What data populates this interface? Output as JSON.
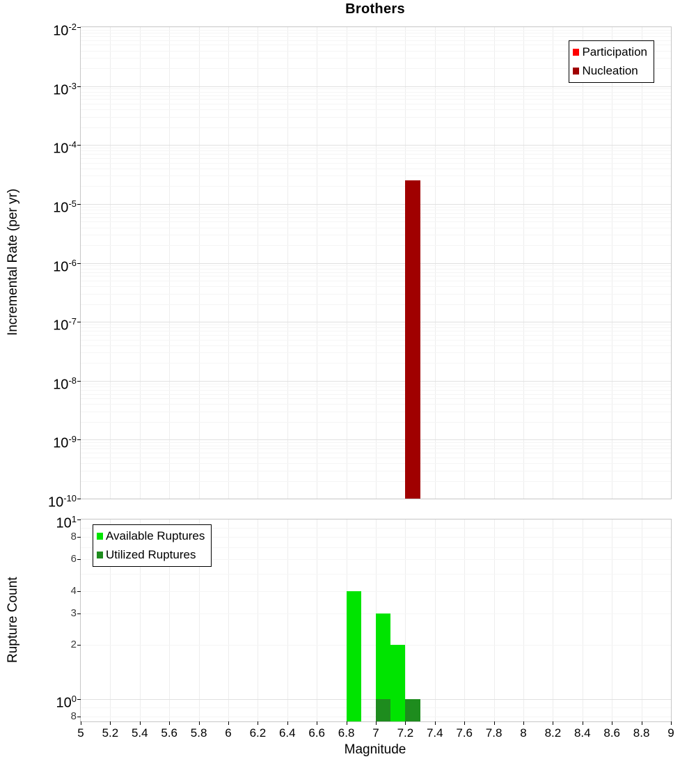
{
  "chart_data": [
    {
      "type": "bar",
      "title": "Brothers",
      "ylabel": "Incremental Rate (per yr)",
      "y_scale": "log",
      "ylim": [
        1e-10,
        0.01
      ],
      "xlim": [
        5,
        9
      ],
      "grid": true,
      "legend_position": "top-right",
      "y_tick_exponents": [
        -2,
        -3,
        -4,
        -5,
        -6,
        -7,
        -8,
        -9,
        -10
      ],
      "bar_width": 0.1,
      "series": [
        {
          "key": "participation",
          "name": "Participation",
          "color": "#ff0000",
          "bars": []
        },
        {
          "key": "nucleation",
          "name": "Nucleation",
          "color": "#a00000",
          "bars": [
            {
              "x": 7.25,
              "y": 2.5e-05
            }
          ]
        }
      ]
    },
    {
      "type": "bar",
      "ylabel": "Rupture Count",
      "xlabel": "Magnitude",
      "y_scale": "log",
      "ylim": [
        0.75,
        10
      ],
      "xlim": [
        5,
        9
      ],
      "grid": true,
      "legend_position": "top-left",
      "y_ticks": [
        {
          "v": 10,
          "exp": 1
        },
        {
          "v": 8,
          "label": "8"
        },
        {
          "v": 6,
          "label": "6"
        },
        {
          "v": 4,
          "label": "4"
        },
        {
          "v": 3,
          "label": "3"
        },
        {
          "v": 2,
          "label": "2"
        },
        {
          "v": 1,
          "exp": 0
        },
        {
          "v": 0.8,
          "label": "8"
        }
      ],
      "x_tick_labels": [
        "5",
        "5.2",
        "5.4",
        "5.6",
        "5.8",
        "6",
        "6.2",
        "6.4",
        "6.6",
        "6.8",
        "7",
        "7.2",
        "7.4",
        "7.6",
        "7.8",
        "8",
        "8.2",
        "8.4",
        "8.6",
        "8.8",
        "9"
      ],
      "bar_width": 0.1,
      "series": [
        {
          "key": "available",
          "name": "Available Ruptures",
          "color": "#00e400",
          "bars": [
            {
              "x": 6.85,
              "y": 4
            },
            {
              "x": 7.05,
              "y": 3
            },
            {
              "x": 7.15,
              "y": 2
            }
          ]
        },
        {
          "key": "utilized",
          "name": "Utilized Ruptures",
          "color": "#1e8c1e",
          "bars": [
            {
              "x": 7.05,
              "y": 1
            },
            {
              "x": 7.25,
              "y": 1
            }
          ]
        }
      ]
    }
  ]
}
